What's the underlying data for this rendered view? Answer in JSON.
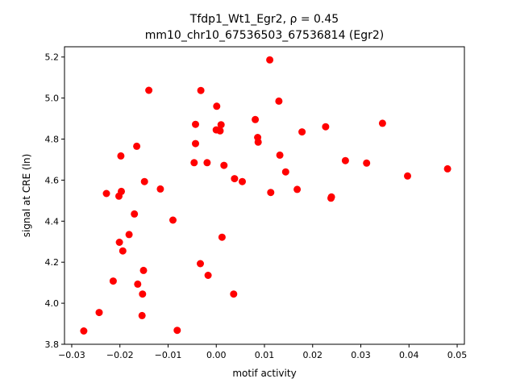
{
  "chart_data": {
    "type": "scatter",
    "title_line1": "Tfdp1_Wt1_Egr2, ρ = 0.45",
    "title_line2": "mm10_chr10_67536503_67536814 (Egr2)",
    "xlabel": "motif activity",
    "ylabel": "signal at CRE (ln)",
    "xlim": [
      -0.0315,
      0.0515
    ],
    "ylim": [
      3.8,
      5.25
    ],
    "xticks": [
      -0.03,
      -0.02,
      -0.01,
      0.0,
      0.01,
      0.02,
      0.03,
      0.04,
      0.05
    ],
    "xtick_labels": [
      "−0.03",
      "−0.02",
      "−0.01",
      "0.00",
      "0.01",
      "0.02",
      "0.03",
      "0.04",
      "0.05"
    ],
    "yticks": [
      3.8,
      4.0,
      4.2,
      4.4,
      4.6,
      4.8,
      5.0,
      5.2
    ],
    "ytick_labels": [
      "3.8",
      "4.0",
      "4.2",
      "4.4",
      "4.6",
      "4.8",
      "5.0",
      "5.2"
    ],
    "marker_color": "#ff0000",
    "grid": false,
    "points": [
      {
        "x": -0.0275,
        "y": 3.865
      },
      {
        "x": -0.0243,
        "y": 3.955
      },
      {
        "x": -0.0228,
        "y": 4.535
      },
      {
        "x": -0.0214,
        "y": 4.108
      },
      {
        "x": -0.0202,
        "y": 4.522
      },
      {
        "x": -0.0201,
        "y": 4.297
      },
      {
        "x": -0.0198,
        "y": 4.718
      },
      {
        "x": -0.0197,
        "y": 4.545
      },
      {
        "x": -0.0194,
        "y": 4.255
      },
      {
        "x": -0.0181,
        "y": 4.335
      },
      {
        "x": -0.017,
        "y": 4.435
      },
      {
        "x": -0.0165,
        "y": 4.765
      },
      {
        "x": -0.0163,
        "y": 4.093
      },
      {
        "x": -0.0154,
        "y": 3.94
      },
      {
        "x": -0.0153,
        "y": 4.045
      },
      {
        "x": -0.0151,
        "y": 4.16
      },
      {
        "x": -0.0149,
        "y": 4.593
      },
      {
        "x": -0.014,
        "y": 5.038
      },
      {
        "x": -0.0116,
        "y": 4.557
      },
      {
        "x": -0.009,
        "y": 4.405
      },
      {
        "x": -0.0081,
        "y": 3.868
      },
      {
        "x": -0.0046,
        "y": 4.685
      },
      {
        "x": -0.0043,
        "y": 4.872
      },
      {
        "x": -0.0043,
        "y": 4.778
      },
      {
        "x": -0.0032,
        "y": 5.037
      },
      {
        "x": -0.0033,
        "y": 4.193
      },
      {
        "x": -0.0017,
        "y": 4.136
      },
      {
        "x": -0.0019,
        "y": 4.685
      },
      {
        "x": 0.0,
        "y": 4.845
      },
      {
        "x": 0.0001,
        "y": 4.96
      },
      {
        "x": 0.0008,
        "y": 4.84
      },
      {
        "x": 0.001,
        "y": 4.87
      },
      {
        "x": 0.0012,
        "y": 4.322
      },
      {
        "x": 0.0016,
        "y": 4.672
      },
      {
        "x": 0.0036,
        "y": 4.045
      },
      {
        "x": 0.0038,
        "y": 4.607
      },
      {
        "x": 0.0054,
        "y": 4.593
      },
      {
        "x": 0.0081,
        "y": 4.895
      },
      {
        "x": 0.0086,
        "y": 4.808
      },
      {
        "x": 0.0087,
        "y": 4.785
      },
      {
        "x": 0.0111,
        "y": 5.186
      },
      {
        "x": 0.0113,
        "y": 4.54
      },
      {
        "x": 0.013,
        "y": 4.985
      },
      {
        "x": 0.0132,
        "y": 4.722
      },
      {
        "x": 0.0144,
        "y": 4.64
      },
      {
        "x": 0.0168,
        "y": 4.555
      },
      {
        "x": 0.0178,
        "y": 4.835
      },
      {
        "x": 0.0227,
        "y": 4.86
      },
      {
        "x": 0.0238,
        "y": 4.512
      },
      {
        "x": 0.0239,
        "y": 4.518
      },
      {
        "x": 0.0268,
        "y": 4.695
      },
      {
        "x": 0.0312,
        "y": 4.683
      },
      {
        "x": 0.0345,
        "y": 4.877
      },
      {
        "x": 0.0397,
        "y": 4.62
      },
      {
        "x": 0.048,
        "y": 4.655
      }
    ]
  }
}
